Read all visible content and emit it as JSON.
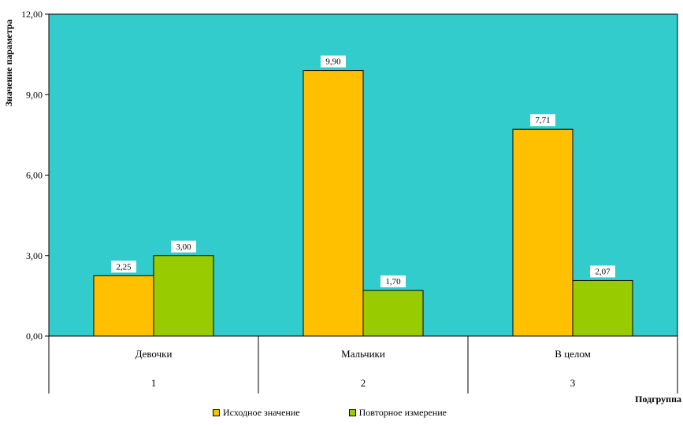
{
  "chart_data": {
    "type": "bar",
    "ylabel": "Значение параметра",
    "xlabel": "Подгруппа",
    "ylim": [
      0,
      12
    ],
    "yticks": [
      "0,00",
      "3,00",
      "6,00",
      "9,00",
      "12,00"
    ],
    "ytick_values": [
      0,
      3,
      6,
      9,
      12
    ],
    "categories": [
      "Девочки",
      "Мальчики",
      "В целом"
    ],
    "category_numbers": [
      "1",
      "2",
      "3"
    ],
    "grid": false,
    "legend_position": "bottom",
    "plot_background": "#33CCCC",
    "series": [
      {
        "name": "Исходное значение",
        "color": "#FFC000",
        "values": [
          2.25,
          9.9,
          7.71
        ],
        "labels": [
          "2,25",
          "9,90",
          "7,71"
        ]
      },
      {
        "name": "Повторное измерение",
        "color": "#99CC00",
        "values": [
          3.0,
          1.7,
          2.07
        ],
        "labels": [
          "3,00",
          "1,70",
          "2,07"
        ]
      }
    ]
  }
}
